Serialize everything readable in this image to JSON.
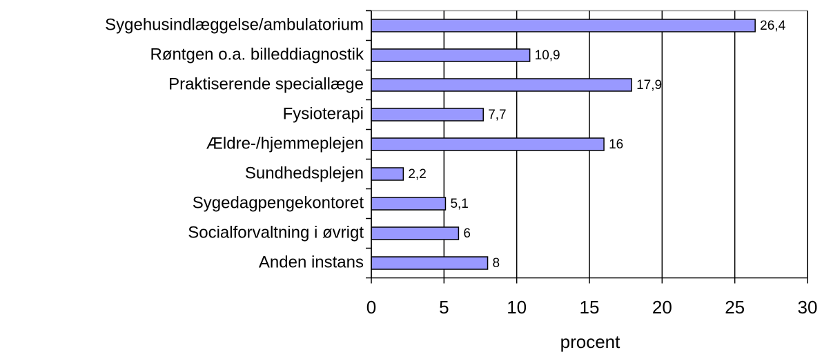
{
  "chart_data": {
    "type": "bar",
    "orientation": "horizontal",
    "categories": [
      "Sygehusindlæggelse/ambulatorium",
      "Røntgen o.a. billeddiagnostik",
      "Praktiserende speciallæge",
      "Fysioterapi",
      "Ældre-/hjemmeplejen",
      "Sundhedsplejen",
      "Sygedagpengekontoret",
      "Socialforvaltning i øvrigt",
      "Anden instans"
    ],
    "values": [
      26.4,
      10.9,
      17.9,
      7.7,
      16,
      2.2,
      5.1,
      6,
      8
    ],
    "value_labels": [
      "26,4",
      "10,9",
      "17,9",
      "7,7",
      "16",
      "2,2",
      "5,1",
      "6",
      "8"
    ],
    "color": "#9999ff",
    "xlabel": "procent",
    "xlim": [
      0,
      30
    ],
    "xticks": [
      0,
      5,
      10,
      15,
      20,
      25,
      30
    ],
    "grid": true
  }
}
